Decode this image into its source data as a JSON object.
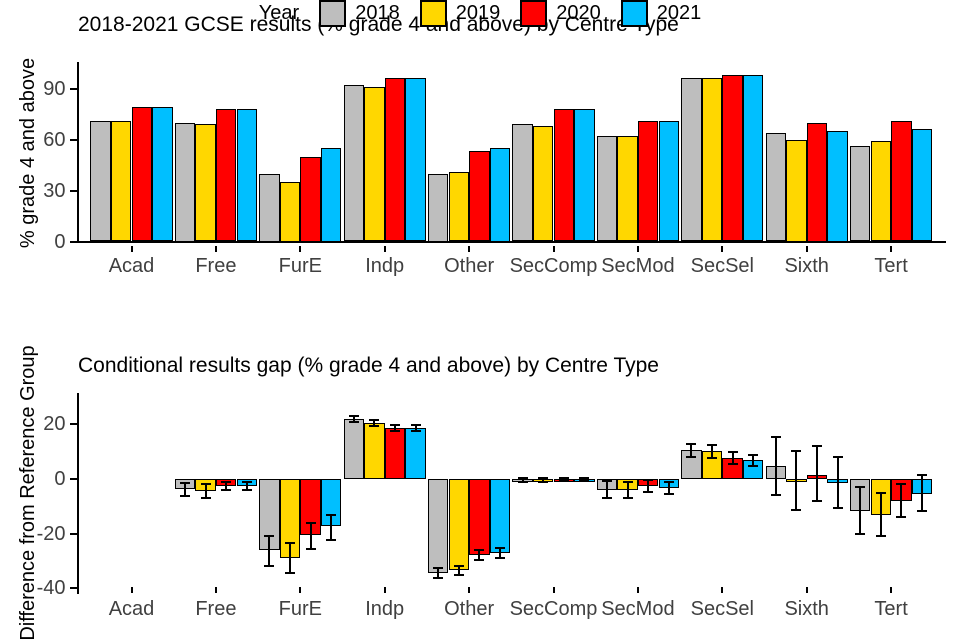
{
  "legend": {
    "label": "Year"
  },
  "chart_data": [
    {
      "type": "bar",
      "title": "2018-2021 GCSE results (% grade 4 and above) by Centre Type",
      "ylabel": "% grade 4 and above",
      "xlabel": "",
      "grid": false,
      "legend_position": "bottom",
      "ylim": [
        0,
        105
      ],
      "yticks": [
        0,
        30,
        60,
        90
      ],
      "categories": [
        "Acad",
        "Free",
        "FurE",
        "Indp",
        "Other",
        "SecComp",
        "SecMod",
        "SecSel",
        "Sixth",
        "Tert"
      ],
      "series": [
        {
          "name": "2018",
          "color": "#BEBEBE",
          "values": [
            71,
            70,
            40,
            92,
            40,
            69,
            62,
            96,
            64,
            56
          ]
        },
        {
          "name": "2019",
          "color": "#FFD700",
          "values": [
            71,
            69,
            35,
            91,
            41,
            68,
            62,
            96,
            60,
            59
          ]
        },
        {
          "name": "2020",
          "color": "#FF0000",
          "values": [
            79,
            78,
            50,
            96,
            53,
            78,
            71,
            98,
            70,
            71
          ]
        },
        {
          "name": "2021",
          "color": "#00BFFF",
          "values": [
            79,
            78,
            55,
            96,
            55,
            78,
            71,
            98,
            65,
            66
          ]
        }
      ]
    },
    {
      "type": "bar",
      "title": "Conditional results gap (% grade 4 and above) by Centre Type",
      "ylabel": "Difference from Reference Group",
      "xlabel": "",
      "grid": false,
      "error_bars": true,
      "ylim": [
        -43,
        30
      ],
      "yticks": [
        20,
        0,
        -20,
        -40
      ],
      "categories": [
        "Acad",
        "Free",
        "FurE",
        "Indp",
        "Other",
        "SecComp",
        "SecMod",
        "SecSel",
        "Sixth",
        "Tert"
      ],
      "series": [
        {
          "name": "2018",
          "color": "#BEBEBE",
          "values": [
            null,
            -3.7,
            -26,
            22,
            -34.5,
            -0.4,
            -3.9,
            10.5,
            4.9,
            -11.8
          ],
          "errors": [
            null,
            [
              -6.2,
              -1.3
            ],
            [
              -32,
              -21
            ],
            [
              20.9,
              23.1
            ],
            [
              -36.3,
              -32.7
            ],
            [
              -1.1,
              0.3
            ],
            [
              -7,
              -0.9
            ],
            [
              8.1,
              12.9
            ],
            [
              -5.8,
              15.3
            ],
            [
              -20,
              -3.1
            ]
          ]
        },
        {
          "name": "2019",
          "color": "#FFD700",
          "values": [
            null,
            -4.3,
            -29,
            20.5,
            -33.5,
            -0.4,
            -4.1,
            10.1,
            -0.6,
            -13.1
          ],
          "errors": [
            null,
            [
              -6.8,
              -1.8
            ],
            [
              -34.5,
              -23.5
            ],
            [
              19.3,
              21.7
            ],
            [
              -35.3,
              -31.7
            ],
            [
              -1.1,
              0.3
            ],
            [
              -7.1,
              -1.1
            ],
            [
              7.6,
              12.6
            ],
            [
              -11.3,
              10.1
            ],
            [
              -21,
              -5.1
            ]
          ]
        },
        {
          "name": "2020",
          "color": "#FF0000",
          "values": [
            null,
            -2.7,
            -20.4,
            18.5,
            -27.7,
            -0.3,
            -2.7,
            7.7,
            1.6,
            -7.9
          ],
          "errors": [
            null,
            [
              -4.2,
              -1.2
            ],
            [
              -25.5,
              -16.1
            ],
            [
              17.4,
              19.6
            ],
            [
              -29.5,
              -25.9
            ],
            [
              -0.9,
              0.3
            ],
            [
              -4.9,
              -0.5
            ],
            [
              5.5,
              9.9
            ],
            [
              -8,
              12
            ],
            [
              -14.1,
              -1.8
            ]
          ]
        },
        {
          "name": "2021",
          "color": "#00BFFF",
          "values": [
            null,
            -2.7,
            -17.1,
            18.7,
            -27.1,
            -0.3,
            -3.3,
            6.8,
            -1.5,
            -5.5
          ],
          "errors": [
            null,
            [
              -4.2,
              -1.2
            ],
            [
              -22.2,
              -13.1
            ],
            [
              17.7,
              19.7
            ],
            [
              -28.9,
              -25.3
            ],
            [
              -0.9,
              0.3
            ],
            [
              -5.4,
              -1.2
            ],
            [
              4.8,
              8.8
            ],
            [
              -10.6,
              7.9
            ],
            [
              -11.8,
              1.6
            ]
          ]
        }
      ]
    }
  ]
}
